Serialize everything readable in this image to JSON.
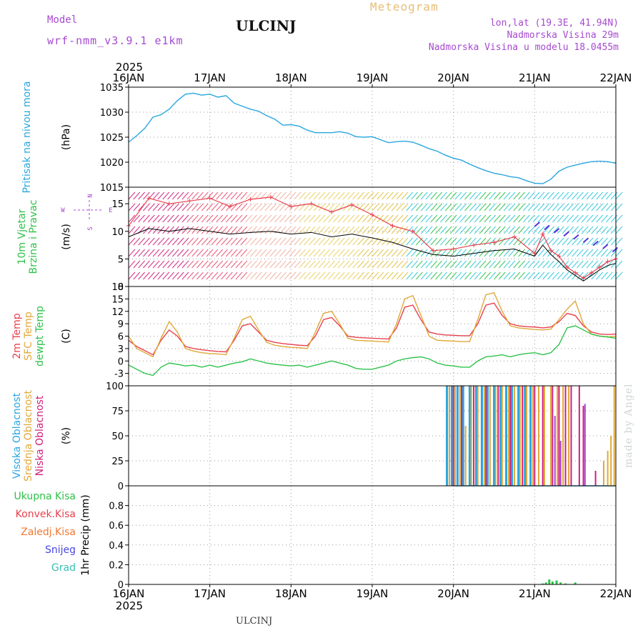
{
  "header": {
    "model_label": "Model",
    "model_name": "wrf-nmm_v3.9.1 e1km",
    "station": "ULCINJ",
    "chart_title": "Meteogram",
    "lonlat": "lon,lat (19.3E, 41.94N)",
    "elevation": "Nadmorska Visina 29m",
    "model_elevation": "Nadmorska Visina u modelu 18.0455m",
    "credit": "made by Angel",
    "footer_station": "ULCINJ"
  },
  "colors": {
    "pressure": "#2aa6df",
    "temp2m": "#e8414e",
    "sfc_temp": "#e0a83a",
    "dewpoint": "#2ec24a",
    "cloud_high": "#2aa6df",
    "cloud_mid": "#e0a83a",
    "cloud_low": "#d0207a",
    "precip_total": "#2ec24a",
    "precip_conv": "#e8414e",
    "precip_frozen": "#f07830",
    "snow": "#4848e0",
    "hail": "#38c0b0",
    "wind_label": "#2ec24a",
    "purple": "#a64ad0"
  },
  "chart_data": [
    {
      "type": "line",
      "panel": "pressure",
      "ylabel_lines": [
        "Pritisak na nivou mora"
      ],
      "unit": "(hPa)",
      "ylim": [
        1015,
        1035
      ],
      "yticks": [
        1015,
        1020,
        1025,
        1030,
        1035
      ],
      "x_start_year": "2025",
      "x_ticks": [
        "16JAN",
        "17JAN",
        "18JAN",
        "19JAN",
        "20JAN",
        "21JAN",
        "22JAN"
      ],
      "grid": true,
      "series": [
        {
          "name": "Pritisak na nivou mora",
          "x": [
            0,
            0.1,
            0.2,
            0.3,
            0.4,
            0.5,
            0.6,
            0.7,
            0.8,
            0.9,
            1.0,
            1.1,
            1.2,
            1.3,
            1.4,
            1.5,
            1.6,
            1.7,
            1.8,
            1.9,
            2.0,
            2.1,
            2.2,
            2.3,
            2.4,
            2.5,
            2.6,
            2.7,
            2.8,
            2.9,
            3.0,
            3.1,
            3.2,
            3.3,
            3.4,
            3.5,
            3.6,
            3.7,
            3.8,
            3.9,
            4.0,
            4.1,
            4.2,
            4.3,
            4.4,
            4.5,
            4.6,
            4.7,
            4.8,
            4.9,
            5.0,
            5.1,
            5.2,
            5.3,
            5.4,
            5.5,
            5.6,
            5.7,
            5.8,
            5.9,
            6.0
          ],
          "y": [
            1024.0,
            1025.3,
            1026.8,
            1029.0,
            1029.5,
            1030.6,
            1032.3,
            1033.6,
            1033.8,
            1033.4,
            1033.6,
            1033.0,
            1033.3,
            1031.8,
            1031.2,
            1030.6,
            1030.2,
            1029.3,
            1028.6,
            1027.4,
            1027.5,
            1027.2,
            1026.4,
            1025.9,
            1025.9,
            1025.9,
            1026.1,
            1025.8,
            1025.1,
            1025.0,
            1025.1,
            1024.5,
            1023.9,
            1024.1,
            1024.2,
            1024.0,
            1023.4,
            1022.7,
            1022.2,
            1021.4,
            1020.8,
            1020.4,
            1019.6,
            1018.9,
            1018.3,
            1017.8,
            1017.5,
            1017.1,
            1016.9,
            1016.3,
            1015.8,
            1015.7,
            1016.6,
            1018.2,
            1019.0,
            1019.4,
            1019.8,
            1020.1,
            1020.2,
            1020.1,
            1019.8
          ]
        }
      ]
    },
    {
      "type": "line",
      "panel": "wind",
      "ylabel_lines": [
        "10m Vjetar",
        "Brzina i Pravac"
      ],
      "unit": "(m/s)",
      "ylim": [
        0,
        18
      ],
      "yticks": [
        0,
        5,
        10,
        15
      ],
      "compass": {
        "n": "N",
        "s": "S",
        "w": "W",
        "e": "E"
      },
      "grid": true,
      "series": [
        {
          "name": "wind gusts",
          "x": [
            0,
            0.25,
            0.5,
            0.75,
            1.0,
            1.25,
            1.5,
            1.75,
            2.0,
            2.25,
            2.5,
            2.75,
            3.0,
            3.25,
            3.5,
            3.75,
            4.0,
            4.25,
            4.5,
            4.75,
            5.0,
            5.1,
            5.2,
            5.3,
            5.4,
            5.5,
            5.6,
            5.7,
            5.8,
            5.9,
            6.0
          ],
          "y": [
            11.0,
            16.0,
            15.0,
            15.5,
            16.0,
            14.5,
            15.8,
            16.2,
            14.5,
            15.0,
            13.5,
            14.8,
            13.0,
            11.0,
            10.0,
            6.5,
            6.8,
            7.5,
            8.0,
            9.0,
            6.0,
            9.5,
            6.5,
            5.5,
            3.5,
            2.5,
            1.5,
            2.5,
            3.5,
            4.5,
            5.0
          ]
        },
        {
          "name": "wind speed",
          "x": [
            0,
            0.25,
            0.5,
            0.75,
            1.0,
            1.25,
            1.5,
            1.75,
            2.0,
            2.25,
            2.5,
            2.75,
            3.0,
            3.25,
            3.5,
            3.75,
            4.0,
            4.25,
            4.5,
            4.75,
            5.0,
            5.1,
            5.2,
            5.3,
            5.4,
            5.5,
            5.6,
            5.7,
            5.8,
            5.9,
            6.0
          ],
          "y": [
            9.0,
            10.5,
            10.0,
            10.5,
            10.0,
            9.5,
            9.8,
            10.0,
            9.5,
            9.8,
            9.0,
            9.5,
            8.8,
            8.0,
            6.8,
            5.8,
            5.5,
            6.0,
            6.5,
            6.8,
            5.5,
            7.5,
            5.8,
            4.5,
            3.0,
            2.0,
            1.0,
            2.0,
            3.0,
            3.8,
            4.2
          ]
        }
      ]
    },
    {
      "type": "line",
      "panel": "temperature",
      "ylabel_lines": [
        "2m Temp",
        "SFC Temp",
        "dewpt Temp"
      ],
      "unit": "(C)",
      "ylim": [
        -6,
        18
      ],
      "yticks": [
        -3,
        0,
        3,
        6,
        9,
        12,
        15,
        18
      ],
      "grid": true,
      "series": [
        {
          "name": "2m Temp",
          "x": [
            0,
            0.1,
            0.2,
            0.3,
            0.4,
            0.5,
            0.6,
            0.7,
            0.8,
            0.9,
            1.0,
            1.1,
            1.2,
            1.3,
            1.4,
            1.5,
            1.6,
            1.7,
            1.8,
            1.9,
            2.0,
            2.1,
            2.2,
            2.3,
            2.4,
            2.5,
            2.6,
            2.7,
            2.8,
            2.9,
            3.0,
            3.1,
            3.2,
            3.3,
            3.4,
            3.5,
            3.6,
            3.7,
            3.8,
            3.9,
            4.0,
            4.1,
            4.2,
            4.3,
            4.4,
            4.5,
            4.6,
            4.7,
            4.8,
            4.9,
            5.0,
            5.1,
            5.2,
            5.3,
            5.4,
            5.5,
            5.6,
            5.7,
            5.8,
            5.9,
            6.0
          ],
          "y": [
            5.0,
            3.5,
            2.5,
            1.5,
            5.0,
            7.5,
            6.0,
            3.5,
            3.0,
            2.7,
            2.5,
            2.3,
            2.2,
            5.0,
            8.5,
            9.0,
            7.0,
            5.0,
            4.5,
            4.2,
            4.0,
            3.8,
            3.7,
            6.0,
            10.0,
            10.5,
            8.5,
            6.0,
            5.7,
            5.6,
            5.5,
            5.4,
            5.3,
            8.0,
            13.0,
            13.5,
            10.0,
            7.0,
            6.5,
            6.3,
            6.2,
            6.1,
            6.1,
            9.0,
            13.5,
            14.0,
            11.0,
            9.0,
            8.5,
            8.3,
            8.2,
            8.0,
            8.2,
            9.5,
            11.5,
            11.0,
            8.5,
            7.0,
            6.5,
            6.4,
            6.5
          ]
        },
        {
          "name": "SFC Temp",
          "x": [
            0,
            0.1,
            0.2,
            0.3,
            0.4,
            0.5,
            0.6,
            0.7,
            0.8,
            0.9,
            1.0,
            1.1,
            1.2,
            1.3,
            1.4,
            1.5,
            1.6,
            1.7,
            1.8,
            1.9,
            2.0,
            2.1,
            2.2,
            2.3,
            2.4,
            2.5,
            2.6,
            2.7,
            2.8,
            2.9,
            3.0,
            3.1,
            3.2,
            3.3,
            3.4,
            3.5,
            3.6,
            3.7,
            3.8,
            3.9,
            4.0,
            4.1,
            4.2,
            4.3,
            4.4,
            4.5,
            4.6,
            4.7,
            4.8,
            4.9,
            5.0,
            5.1,
            5.2,
            5.3,
            5.4,
            5.5,
            5.6,
            5.7,
            5.8,
            5.9,
            6.0
          ],
          "y": [
            6.0,
            3.0,
            2.0,
            1.0,
            5.5,
            9.5,
            7.0,
            3.0,
            2.4,
            2.0,
            1.8,
            1.7,
            1.5,
            5.5,
            10.0,
            10.8,
            7.5,
            4.5,
            3.8,
            3.5,
            3.3,
            3.2,
            3.0,
            7.0,
            11.5,
            12.0,
            9.0,
            5.5,
            5.0,
            4.9,
            4.8,
            4.7,
            4.6,
            9.0,
            15.0,
            15.8,
            11.0,
            6.0,
            5.0,
            4.9,
            4.8,
            4.7,
            4.7,
            10.0,
            16.0,
            16.5,
            12.0,
            8.5,
            8.0,
            7.8,
            7.6,
            7.5,
            7.7,
            10.0,
            12.5,
            14.5,
            9.0,
            6.5,
            6.0,
            5.8,
            6.0
          ]
        },
        {
          "name": "dewpt Temp",
          "x": [
            0,
            0.1,
            0.2,
            0.3,
            0.4,
            0.5,
            0.6,
            0.7,
            0.8,
            0.9,
            1.0,
            1.1,
            1.2,
            1.3,
            1.4,
            1.5,
            1.6,
            1.7,
            1.8,
            1.9,
            2.0,
            2.1,
            2.2,
            2.3,
            2.4,
            2.5,
            2.6,
            2.7,
            2.8,
            2.9,
            3.0,
            3.1,
            3.2,
            3.3,
            3.4,
            3.5,
            3.6,
            3.7,
            3.8,
            3.9,
            4.0,
            4.1,
            4.2,
            4.3,
            4.4,
            4.5,
            4.6,
            4.7,
            4.8,
            4.9,
            5.0,
            5.1,
            5.2,
            5.3,
            5.4,
            5.5,
            5.6,
            5.7,
            5.8,
            5.9,
            6.0
          ],
          "y": [
            -1.0,
            -2.0,
            -3.0,
            -3.5,
            -1.5,
            -0.5,
            -0.8,
            -1.2,
            -1.0,
            -1.5,
            -1.0,
            -1.5,
            -1.0,
            -0.5,
            -0.2,
            0.5,
            0.0,
            -0.5,
            -0.8,
            -1.0,
            -1.2,
            -1.0,
            -1.5,
            -1.0,
            -0.5,
            0.0,
            -0.5,
            -1.0,
            -1.8,
            -2.0,
            -2.0,
            -1.5,
            -1.0,
            0.0,
            0.5,
            0.8,
            1.0,
            0.5,
            -0.5,
            -1.0,
            -1.2,
            -1.5,
            -1.5,
            0.0,
            1.0,
            1.2,
            1.5,
            1.0,
            1.5,
            1.8,
            2.0,
            1.5,
            2.0,
            4.0,
            8.0,
            8.5,
            7.5,
            6.5,
            6.0,
            5.8,
            5.5
          ]
        }
      ]
    },
    {
      "type": "bar",
      "panel": "clouds",
      "ylabel_lines": [
        "Visoka Oblacnost",
        "Srednja Oblacnost",
        "Niska Oblacnost"
      ],
      "unit": "(%)",
      "ylim": [
        0,
        100
      ],
      "yticks": [
        0,
        25,
        50,
        75,
        100
      ],
      "grid": true,
      "series": [
        {
          "name": "Visoka Oblacnost",
          "x": [
            3.92,
            3.98,
            4.05,
            4.12,
            4.2,
            4.28,
            4.35,
            4.42,
            4.5,
            4.58,
            4.65,
            4.72,
            4.8,
            4.88,
            4.95
          ],
          "values": [
            100,
            100,
            100,
            100,
            100,
            100,
            100,
            100,
            100,
            100,
            100,
            100,
            100,
            100,
            100
          ]
        },
        {
          "name": "Srednja Oblacnost",
          "x": [
            3.95,
            4.02,
            4.08,
            4.15,
            4.22,
            4.3,
            4.38,
            4.45,
            4.52,
            4.6,
            4.68,
            4.75,
            4.82,
            4.9,
            4.98,
            5.05,
            5.12,
            5.2,
            5.28,
            5.35,
            5.42,
            5.85,
            5.9,
            5.94,
            5.98
          ],
          "values": [
            100,
            100,
            100,
            60,
            100,
            100,
            100,
            100,
            100,
            100,
            100,
            100,
            100,
            100,
            100,
            100,
            100,
            100,
            100,
            100,
            100,
            25,
            35,
            50,
            100
          ]
        },
        {
          "name": "Niska Oblacnost",
          "x": [
            4.0,
            4.1,
            4.25,
            4.4,
            4.55,
            4.7,
            4.85,
            5.0,
            5.1,
            5.22,
            5.3,
            5.38,
            5.45,
            5.55,
            5.6,
            5.75
          ],
          "values": [
            100,
            100,
            100,
            100,
            100,
            100,
            100,
            100,
            100,
            100,
            100,
            100,
            100,
            100,
            80,
            15
          ]
        },
        {
          "name": "purple",
          "x": [
            5.25,
            5.32,
            5.62
          ],
          "values": [
            70,
            45,
            82
          ]
        }
      ]
    },
    {
      "type": "bar",
      "panel": "precip",
      "ylabel_lines": [
        "Ukupna Kisa",
        "Konvek.Kisa",
        "Zaledj.Kisa",
        "Snijeg",
        "Grad"
      ],
      "unit": "1hr Precip (mm)",
      "ylim": [
        0,
        1
      ],
      "yticks": [
        0,
        0.2,
        0.4,
        0.6,
        0.8
      ],
      "x_start_year": "2025",
      "x_ticks": [
        "16JAN",
        "17JAN",
        "18JAN",
        "19JAN",
        "20JAN",
        "21JAN",
        "22JAN"
      ],
      "grid": true,
      "series": [
        {
          "name": "Ukupna Kisa",
          "x": [
            5.1,
            5.14,
            5.18,
            5.22,
            5.27,
            5.32,
            5.38,
            5.5
          ],
          "values": [
            0.01,
            0.02,
            0.05,
            0.03,
            0.04,
            0.02,
            0.01,
            0.02
          ]
        }
      ]
    }
  ]
}
